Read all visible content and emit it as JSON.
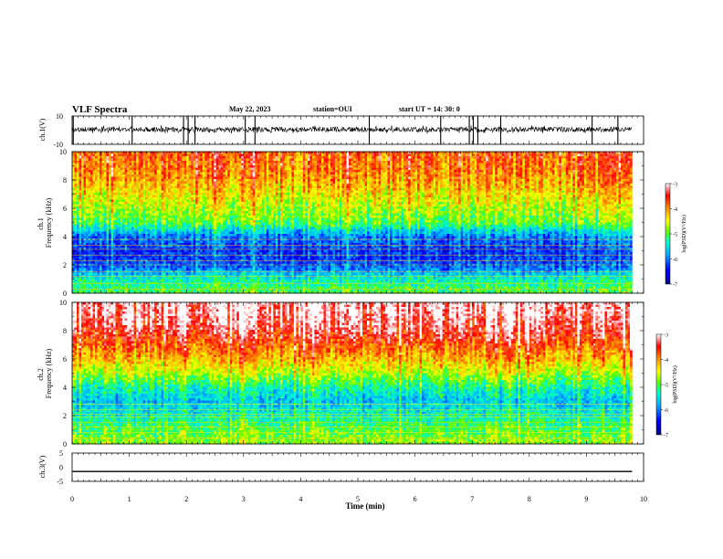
{
  "header": {
    "title": "VLF Spectra",
    "date": "May 22, 2023",
    "station": "station=OUI",
    "start_time": "start UT =  14: 30: 0"
  },
  "chart_data": [
    {
      "type": "line",
      "panel": "ch1-waveform",
      "ylabel": "ch.1(V)",
      "ylim": [
        -10,
        10
      ],
      "yticks": [
        "10",
        "-10"
      ],
      "xlim": [
        0,
        10
      ],
      "x_end": 9.8,
      "baseline_v": 0.5,
      "noise_band_v": 1.8,
      "impulse_times_min": [
        0.02,
        1.05,
        1.95,
        2.03,
        2.15,
        3.03,
        3.2,
        5.2,
        6.45,
        6.95,
        7.02,
        7.1,
        7.5,
        9.1,
        9.55
      ]
    },
    {
      "type": "heatmap",
      "panel": "ch1-spectrogram",
      "ylabel": "ch.1 Frequency (kHz)",
      "ylim": [
        0,
        10
      ],
      "yticks": [
        "0",
        "2",
        "4",
        "6",
        "8",
        "10"
      ],
      "xlim": [
        0,
        10
      ],
      "x_end": 9.8,
      "colorbar": {
        "label": "log(PSD)(V²/Hz)",
        "range": [
          -7,
          -3
        ],
        "ticks": [
          "-3",
          "-4",
          "-5",
          "-6",
          "-7"
        ]
      },
      "dominant_profile_khz": [
        0,
        1,
        2,
        3,
        4,
        5,
        6,
        7,
        8,
        9,
        10
      ],
      "dominant_log_psd": [
        -5.0,
        -5.4,
        -6.2,
        -6.3,
        -6.0,
        -5.0,
        -4.7,
        -4.4,
        -4.1,
        -3.9,
        -3.8
      ],
      "tone_lines_khz": [
        0.3,
        0.7,
        1.2,
        1.5,
        2.0,
        2.3,
        2.7,
        3.1,
        3.4,
        3.8
      ]
    },
    {
      "type": "heatmap",
      "panel": "ch2-spectrogram",
      "ylabel": "ch.2 Frequency (kHz)",
      "ylim": [
        0,
        10
      ],
      "yticks": [
        "0",
        "2",
        "4",
        "6",
        "8",
        "10"
      ],
      "xlim": [
        0,
        10
      ],
      "x_end": 9.8,
      "colorbar": {
        "label": "log(PSD)(V²/Hz)",
        "range": [
          -7,
          -3
        ],
        "ticks": [
          "-3",
          "-4",
          "-5",
          "-6",
          "-7"
        ]
      },
      "dominant_profile_khz": [
        0,
        1,
        2,
        3,
        4,
        5,
        6,
        7,
        8,
        9,
        10
      ],
      "dominant_log_psd": [
        -4.8,
        -5.0,
        -5.4,
        -5.7,
        -5.3,
        -4.7,
        -4.2,
        -3.8,
        -3.4,
        -3.2,
        -3.1
      ],
      "tone_lines_khz": [
        0.4,
        0.8,
        1.2,
        1.5,
        1.9,
        2.1,
        2.4,
        2.8
      ]
    },
    {
      "type": "line",
      "panel": "ch3-waveform",
      "ylabel": "ch.3(V)",
      "ylim": [
        -5,
        5
      ],
      "yticks": [
        "5",
        "0",
        "-5"
      ],
      "xlim": [
        0,
        10
      ],
      "x_end": 9.8,
      "x": [
        0,
        9.8
      ],
      "y": [
        -1.5,
        -1.5
      ]
    }
  ],
  "xaxis": {
    "label": "Time (min)",
    "ticks": [
      "0",
      "1",
      "2",
      "3",
      "4",
      "5",
      "6",
      "7",
      "8",
      "9",
      "10"
    ]
  },
  "colors": {
    "colormap": [
      "#00008c",
      "#0000ff",
      "#00b4ff",
      "#00ffc8",
      "#5aff00",
      "#ffff00",
      "#ff9600",
      "#ff0000",
      "#ffffff"
    ]
  }
}
